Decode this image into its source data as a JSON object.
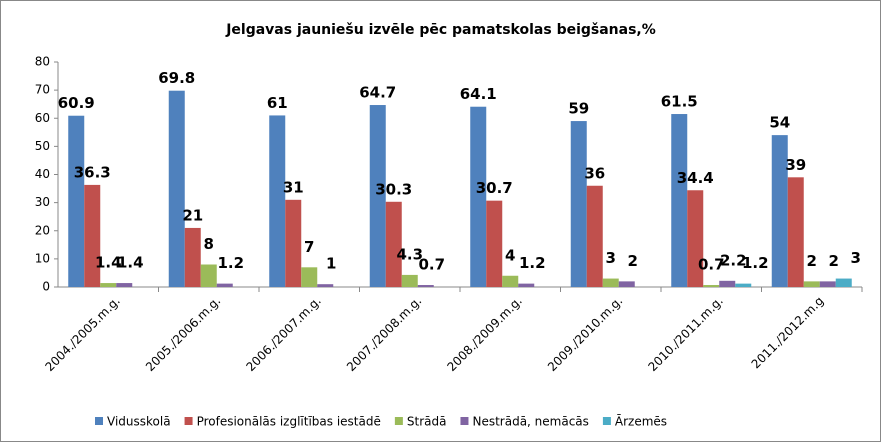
{
  "chart_data": {
    "type": "bar",
    "title": "Jelgavas jauniešu izvēle pēc pamatskolas beigšanas,%",
    "categories": [
      "2004./2005.m.g.",
      "2005./2006.m.g.",
      "2006./2007.m.g.",
      "2007./2008.m.g.",
      "2008./2009.m.g.",
      "2009./2010.m.g.",
      "2010./2011.m.g.",
      "2011./2012.m.g"
    ],
    "series": [
      {
        "name": "Vidusskolā",
        "color": "#4f81bd",
        "values": [
          60.9,
          69.8,
          61,
          64.7,
          64.1,
          59,
          61.5,
          54
        ]
      },
      {
        "name": "Profesionālās izglītības iestādē",
        "color": "#c0504d",
        "values": [
          36.3,
          21,
          31,
          30.3,
          30.7,
          36,
          34.4,
          39
        ]
      },
      {
        "name": "Strādā",
        "color": "#9bbb59",
        "values": [
          1.4,
          8,
          7,
          4.3,
          4,
          3,
          0.7,
          2
        ]
      },
      {
        "name": "Nestrādā, nemācās",
        "color": "#8064a2",
        "values": [
          1.4,
          1.2,
          1,
          0.7,
          1.2,
          2,
          2.2,
          2
        ]
      },
      {
        "name": "Ārzemēs",
        "color": "#4bacc6",
        "values": [
          null,
          null,
          null,
          null,
          null,
          null,
          1.2,
          3
        ]
      }
    ],
    "ylim": [
      0,
      80
    ],
    "yticks": [
      0,
      10,
      20,
      30,
      40,
      50,
      60,
      70,
      80
    ],
    "grid": false,
    "legend": "bottom"
  }
}
